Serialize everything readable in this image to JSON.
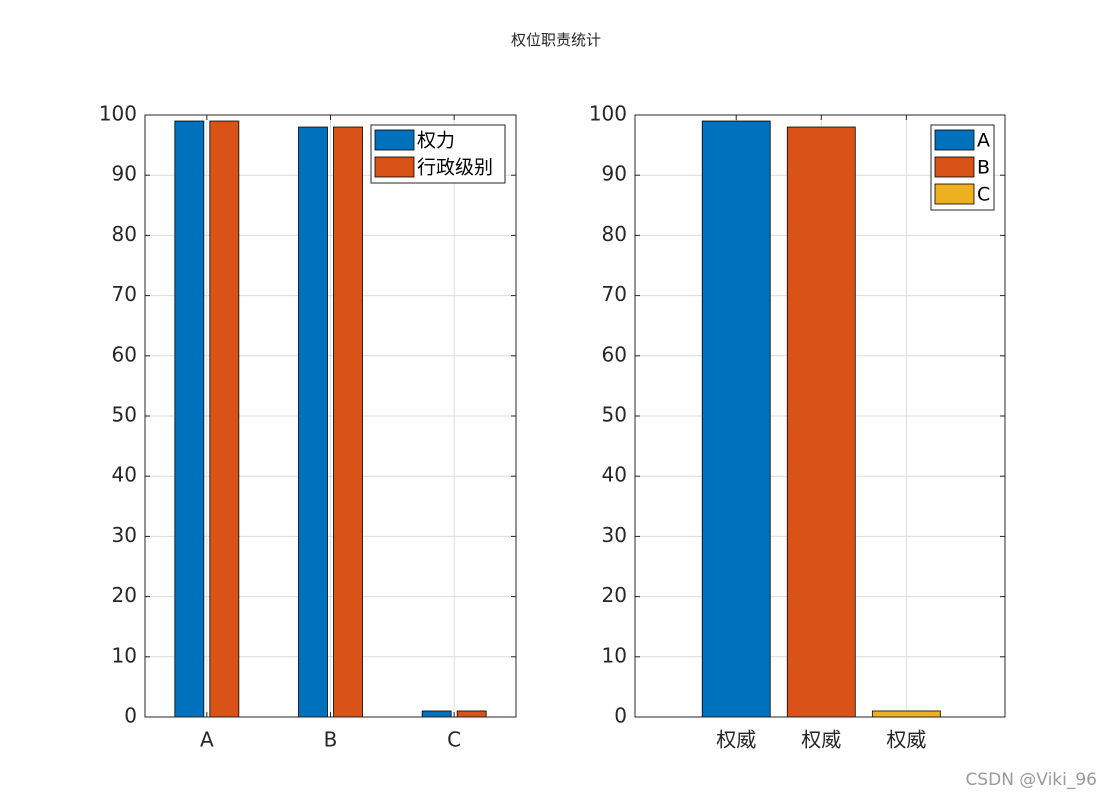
{
  "title": "权位职责统计",
  "watermark": "CSDN @Viki_96",
  "chart_data": [
    {
      "type": "bar",
      "categories": [
        "A",
        "B",
        "C"
      ],
      "series": [
        {
          "name": "权力",
          "color": "#0072BD",
          "values": [
            99,
            98,
            1
          ]
        },
        {
          "name": "行政级别",
          "color": "#D95319",
          "values": [
            99,
            98,
            1
          ]
        }
      ],
      "ylim": [
        0,
        100
      ],
      "yticks": [
        0,
        10,
        20,
        30,
        40,
        50,
        60,
        70,
        80,
        90,
        100
      ],
      "grid": true,
      "legend": "upper right"
    },
    {
      "type": "bar",
      "xticklabels": [
        "权威",
        "权威",
        "权威"
      ],
      "series": [
        {
          "name": "A",
          "color": "#0072BD",
          "values": [
            99
          ]
        },
        {
          "name": "B",
          "color": "#D95319",
          "values": [
            98
          ]
        },
        {
          "name": "C",
          "color": "#EDB120",
          "values": [
            1
          ]
        }
      ],
      "ylim": [
        0,
        100
      ],
      "yticks": [
        0,
        10,
        20,
        30,
        40,
        50,
        60,
        70,
        80,
        90,
        100
      ],
      "grid": true,
      "legend": "upper right"
    }
  ]
}
